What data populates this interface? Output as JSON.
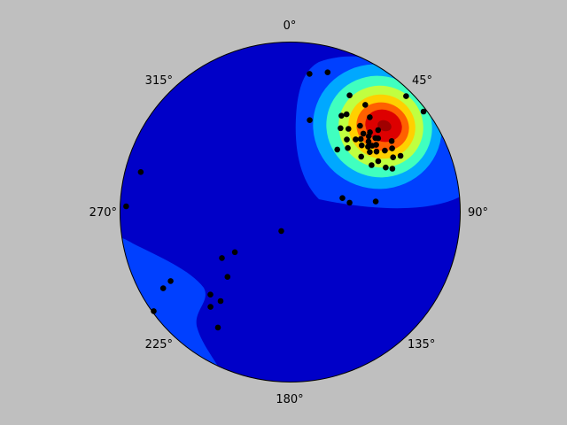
{
  "chart_data": {
    "type": "scatter",
    "projection": "stereonet (equal-area, polar)",
    "title": "",
    "azimuth_labels": [
      "0°",
      "45°",
      "90°",
      "135°",
      "180°",
      "225°",
      "270°",
      "315°"
    ],
    "background_color": "#bfbfbf",
    "density_colormap": [
      "#0000c8",
      "#0040ff",
      "#00a8ff",
      "#40ffbf",
      "#c0ff40",
      "#ffd000",
      "#ff6000",
      "#dd0000",
      "#a00000"
    ],
    "density_peak_pole": {
      "trend": 48,
      "plunge": 38
    },
    "secondary_density_lobe": "around 230°, near the primitive circle",
    "pole_color": "#000000",
    "poles": [
      {
        "trend": 48,
        "plunge": 38
      },
      {
        "trend": 46,
        "plunge": 36
      },
      {
        "trend": 50,
        "plunge": 40
      },
      {
        "trend": 44,
        "plunge": 40
      },
      {
        "trend": 52,
        "plunge": 36
      },
      {
        "trend": 47,
        "plunge": 42
      },
      {
        "trend": 49,
        "plunge": 34
      },
      {
        "trend": 53,
        "plunge": 41
      },
      {
        "trend": 43,
        "plunge": 37
      },
      {
        "trend": 51,
        "plunge": 38
      },
      {
        "trend": 45,
        "plunge": 34
      },
      {
        "trend": 55,
        "plunge": 38
      },
      {
        "trend": 50,
        "plunge": 33
      },
      {
        "trend": 42,
        "plunge": 42
      },
      {
        "trend": 57,
        "plunge": 34
      },
      {
        "trend": 39,
        "plunge": 35
      },
      {
        "trend": 47,
        "plunge": 30
      },
      {
        "trend": 58,
        "plunge": 30
      },
      {
        "trend": 62,
        "plunge": 32
      },
      {
        "trend": 63,
        "plunge": 28
      },
      {
        "trend": 35,
        "plunge": 40
      },
      {
        "trend": 60,
        "plunge": 40
      },
      {
        "trend": 55,
        "plunge": 28
      },
      {
        "trend": 40,
        "plunge": 28
      },
      {
        "trend": 30,
        "plunge": 34
      },
      {
        "trend": 38,
        "plunge": 45
      },
      {
        "trend": 65,
        "plunge": 38
      },
      {
        "trend": 67,
        "plunge": 35
      },
      {
        "trend": 42,
        "plunge": 48
      },
      {
        "trend": 52,
        "plunge": 46
      },
      {
        "trend": 60,
        "plunge": 44
      },
      {
        "trend": 37,
        "plunge": 52
      },
      {
        "trend": 35,
        "plunge": 24
      },
      {
        "trend": 31,
        "plunge": 42
      },
      {
        "trend": 28,
        "plunge": 36
      },
      {
        "trend": 27,
        "plunge": 24
      },
      {
        "trend": 15,
        "plunge": 16
      },
      {
        "trend": 8,
        "plunge": 19
      },
      {
        "trend": 12,
        "plunge": 44
      },
      {
        "trend": 45,
        "plunge": 4
      },
      {
        "trend": 53,
        "plunge": 2
      },
      {
        "trend": 83,
        "plunge": 48
      },
      {
        "trend": 81,
        "plunge": 61
      },
      {
        "trend": 75,
        "plunge": 64
      },
      {
        "trend": 205,
        "plunge": 80
      },
      {
        "trend": 236,
        "plunge": 50
      },
      {
        "trend": 234,
        "plunge": 57
      },
      {
        "trend": 224,
        "plunge": 46
      },
      {
        "trend": 224,
        "plunge": 33
      },
      {
        "trend": 220,
        "plunge": 28
      },
      {
        "trend": 212,
        "plunge": 21
      },
      {
        "trend": 218,
        "plunge": 34
      },
      {
        "trend": 239,
        "plunge": 14
      },
      {
        "trend": 240,
        "plunge": 20
      },
      {
        "trend": 234,
        "plunge": 1
      },
      {
        "trend": 272,
        "plunge": 4
      },
      {
        "trend": 285,
        "plunge": 10
      }
    ]
  }
}
